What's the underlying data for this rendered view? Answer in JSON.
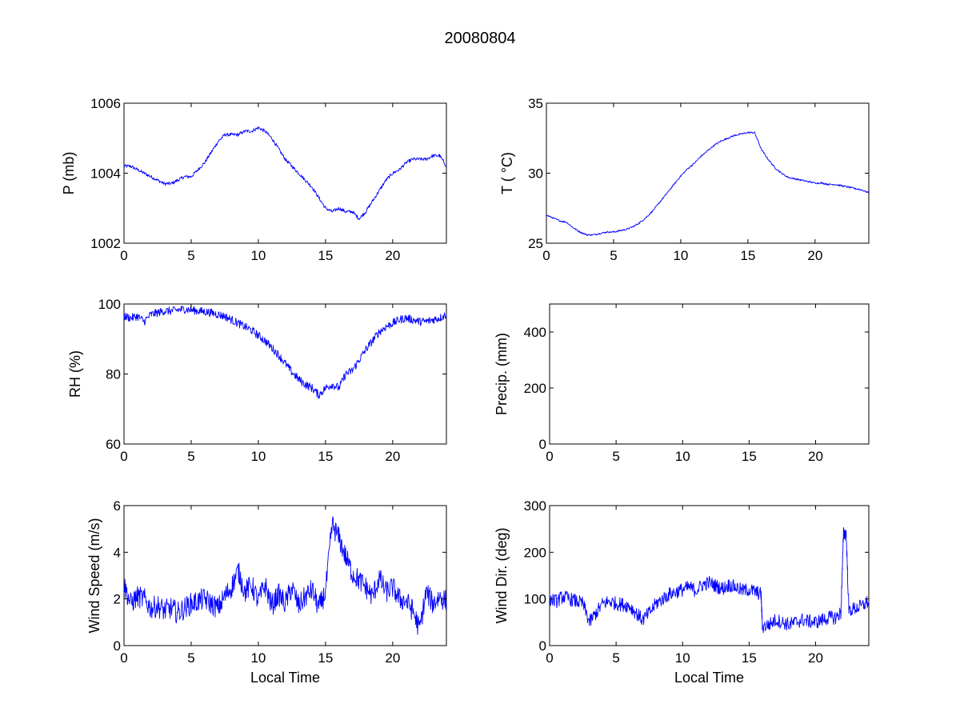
{
  "figure": {
    "title": "20080804"
  },
  "chart_data": [
    {
      "id": "pressure",
      "type": "line",
      "xlabel": "",
      "ylabel": "P (mb)",
      "xlim": [
        0,
        24
      ],
      "ylim": [
        1002,
        1006
      ],
      "xticks": [
        0,
        5,
        10,
        15,
        20
      ],
      "yticks": [
        1002,
        1004,
        1006
      ],
      "grid": false,
      "color": "#0000ff",
      "series": [
        {
          "x": [
            0,
            0.5,
            1,
            1.5,
            2,
            2.5,
            3,
            3.5,
            4,
            4.5,
            5,
            5.5,
            6,
            6.5,
            7,
            7.5,
            8,
            8.5,
            9,
            9.5,
            10,
            10.5,
            11,
            11.5,
            12,
            12.5,
            13,
            13.5,
            14,
            14.5,
            15,
            15.5,
            16,
            16.5,
            17,
            17.5,
            18,
            18.5,
            19,
            19.5,
            20,
            20.5,
            21,
            21.5,
            22,
            22.5,
            23,
            23.5,
            24
          ],
          "y": [
            1004.2,
            1004.2,
            1004.1,
            1004.0,
            1003.9,
            1003.8,
            1003.7,
            1003.7,
            1003.8,
            1003.9,
            1003.9,
            1004.1,
            1004.3,
            1004.6,
            1004.9,
            1005.1,
            1005.1,
            1005.1,
            1005.2,
            1005.2,
            1005.3,
            1005.2,
            1005.0,
            1004.7,
            1004.4,
            1004.2,
            1004.0,
            1003.8,
            1003.6,
            1003.3,
            1003.0,
            1002.9,
            1003.0,
            1002.9,
            1002.9,
            1002.7,
            1002.9,
            1003.2,
            1003.5,
            1003.8,
            1004.0,
            1004.1,
            1004.3,
            1004.4,
            1004.4,
            1004.4,
            1004.5,
            1004.5,
            1004.2
          ]
        }
      ]
    },
    {
      "id": "temperature",
      "type": "line",
      "xlabel": "",
      "ylabel": "T ( °C)",
      "xlim": [
        0,
        24
      ],
      "ylim": [
        25,
        35
      ],
      "xticks": [
        0,
        5,
        10,
        15,
        20
      ],
      "yticks": [
        25,
        30,
        35
      ],
      "grid": false,
      "color": "#0000ff",
      "series": [
        {
          "x": [
            0,
            0.5,
            1,
            1.5,
            2,
            2.5,
            3,
            3.5,
            4,
            4.5,
            5,
            5.5,
            6,
            6.5,
            7,
            7.5,
            8,
            8.5,
            9,
            9.5,
            10,
            10.5,
            11,
            11.5,
            12,
            12.5,
            13,
            13.5,
            14,
            14.5,
            15,
            15.5,
            16,
            16.5,
            17,
            17.5,
            18,
            18.5,
            19,
            19.5,
            20,
            20.5,
            21,
            21.5,
            22,
            22.5,
            23,
            23.5,
            24
          ],
          "y": [
            27.0,
            26.8,
            26.6,
            26.5,
            26.1,
            25.8,
            25.6,
            25.6,
            25.7,
            25.8,
            25.8,
            25.9,
            26.0,
            26.2,
            26.5,
            26.9,
            27.4,
            28.0,
            28.6,
            29.2,
            29.8,
            30.3,
            30.7,
            31.2,
            31.6,
            32.0,
            32.3,
            32.5,
            32.7,
            32.8,
            32.9,
            32.9,
            31.7,
            31.0,
            30.4,
            30.0,
            29.7,
            29.6,
            29.5,
            29.4,
            29.3,
            29.3,
            29.2,
            29.2,
            29.1,
            29.0,
            28.9,
            28.8,
            28.6
          ]
        }
      ]
    },
    {
      "id": "humidity",
      "type": "line",
      "xlabel": "",
      "ylabel": "RH (%)",
      "xlim": [
        0,
        24
      ],
      "ylim": [
        60,
        100
      ],
      "xticks": [
        0,
        5,
        10,
        15,
        20
      ],
      "yticks": [
        60,
        80,
        100
      ],
      "grid": false,
      "color": "#0000ff",
      "series": [
        {
          "x": [
            0,
            0.5,
            1,
            1.5,
            2,
            2.5,
            3,
            3.5,
            4,
            4.5,
            5,
            5.5,
            6,
            6.5,
            7,
            7.5,
            8,
            8.5,
            9,
            9.5,
            10,
            10.5,
            11,
            11.5,
            12,
            12.5,
            13,
            13.5,
            14,
            14.5,
            15,
            15.5,
            16,
            16.5,
            17,
            17.5,
            18,
            18.5,
            19,
            19.5,
            20,
            20.5,
            21,
            21.5,
            22,
            22.5,
            23,
            23.5,
            24
          ],
          "y": [
            96.5,
            96,
            96.5,
            95,
            97,
            97.5,
            98,
            98,
            98.3,
            98.5,
            98.3,
            98,
            97.8,
            97.5,
            97,
            96.5,
            95.5,
            94.5,
            93.5,
            92.5,
            91,
            89.5,
            87.5,
            85.5,
            83,
            80.5,
            78.5,
            77,
            76,
            74,
            76,
            77,
            76,
            80,
            81,
            84,
            87,
            89.5,
            92,
            93.5,
            94.5,
            95.5,
            96,
            95.5,
            95,
            95,
            95.5,
            96,
            97
          ]
        }
      ]
    },
    {
      "id": "precip",
      "type": "line",
      "xlabel": "",
      "ylabel": "Precip. (mm)",
      "xlim": [
        0,
        24
      ],
      "ylim": [
        0,
        500
      ],
      "xticks": [
        0,
        5,
        10,
        15,
        20
      ],
      "yticks": [
        0,
        200,
        400
      ],
      "grid": false,
      "color": "#0000ff",
      "series": [
        {
          "x": [],
          "y": []
        }
      ]
    },
    {
      "id": "windspeed",
      "type": "line",
      "xlabel": "Local Time",
      "ylabel": "Wind Speed (m/s)",
      "xlim": [
        0,
        24
      ],
      "ylim": [
        0,
        6
      ],
      "xticks": [
        0,
        5,
        10,
        15,
        20
      ],
      "yticks": [
        0,
        2,
        4,
        6
      ],
      "grid": false,
      "color": "#0000ff",
      "series": [
        {
          "x": [
            0,
            0.5,
            1,
            1.5,
            2,
            2.5,
            3,
            3.5,
            4,
            4.5,
            5,
            5.5,
            6,
            6.5,
            7,
            7.5,
            8,
            8.5,
            9,
            9.5,
            10,
            10.5,
            11,
            11.5,
            12,
            12.5,
            13,
            13.5,
            14,
            14.5,
            15,
            15.5,
            16,
            16.5,
            17,
            17.5,
            18,
            18.5,
            19,
            19.5,
            20,
            20.5,
            21,
            21.5,
            22,
            22.5,
            23,
            23.5,
            24
          ],
          "y": [
            2.6,
            1.8,
            2.1,
            2.0,
            1.6,
            1.7,
            1.5,
            1.6,
            1.4,
            1.6,
            1.8,
            1.9,
            2.0,
            1.8,
            1.6,
            2.1,
            2.5,
            3.2,
            2.3,
            2.6,
            1.9,
            2.6,
            1.7,
            2.2,
            1.8,
            2.5,
            1.7,
            2.1,
            2.4,
            1.6,
            2.3,
            5.2,
            4.6,
            3.8,
            3.1,
            2.8,
            2.5,
            2.1,
            2.9,
            2.3,
            2.5,
            2.0,
            1.9,
            1.5,
            0.7,
            2.3,
            1.8,
            2.1,
            1.9
          ]
        }
      ]
    },
    {
      "id": "winddir",
      "type": "line",
      "xlabel": "Local Time",
      "ylabel": "Wind Dir. (deg)",
      "xlim": [
        0,
        24
      ],
      "ylim": [
        0,
        300
      ],
      "xticks": [
        0,
        5,
        10,
        15,
        20
      ],
      "yticks": [
        0,
        100,
        200,
        300
      ],
      "grid": false,
      "color": "#0000ff",
      "series": [
        {
          "x": [
            0,
            0.5,
            1,
            1.5,
            2,
            2.5,
            3,
            3.5,
            4,
            4.5,
            5,
            5.5,
            6,
            6.5,
            7,
            7.5,
            8,
            8.5,
            9,
            9.5,
            10,
            10.5,
            11,
            11.5,
            12,
            12.5,
            13,
            13.5,
            14,
            14.5,
            15,
            15.5,
            15.9,
            16,
            16.5,
            17,
            17.5,
            18,
            18.5,
            19,
            19.5,
            20,
            20.5,
            21,
            21.5,
            21.9,
            22.1,
            22.3,
            22.5,
            23,
            23.5,
            24
          ],
          "y": [
            100,
            95,
            105,
            100,
            95,
            90,
            50,
            70,
            90,
            95,
            90,
            88,
            85,
            70,
            55,
            70,
            90,
            100,
            110,
            115,
            120,
            125,
            118,
            130,
            135,
            128,
            122,
            130,
            125,
            118,
            120,
            115,
            110,
            40,
            45,
            55,
            50,
            45,
            50,
            55,
            52,
            50,
            55,
            60,
            60,
            70,
            240,
            240,
            75,
            80,
            85,
            95
          ]
        }
      ]
    }
  ]
}
